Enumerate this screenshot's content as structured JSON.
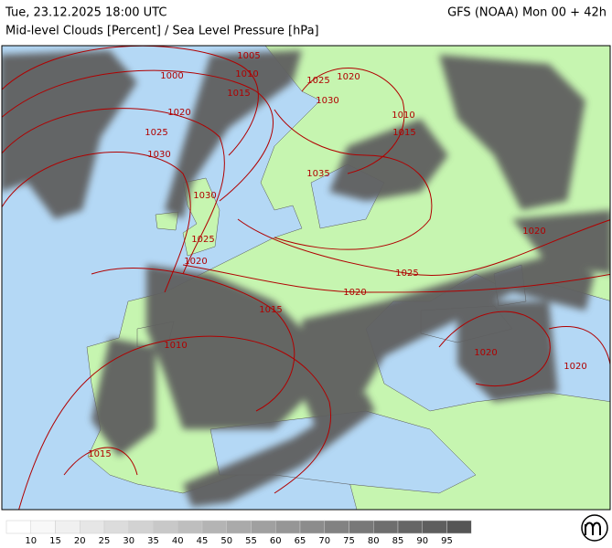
{
  "header": {
    "datetime": "Tue, 23.12.2025 18:00 UTC",
    "model": "GFS (NOAA) Mon 00 + 42h",
    "title": "Mid-level Clouds [Percent] / Sea Level Pressure [hPa]"
  },
  "isobar_labels": [
    "1005",
    "1000",
    "1010",
    "1015",
    "1025",
    "1020",
    "1030",
    "1020",
    "1010",
    "1025",
    "1015",
    "1030",
    "1035",
    "1030",
    "1020",
    "1025",
    "1020",
    "1025",
    "1020",
    "1015",
    "1010",
    "1020",
    "1020",
    "1015"
  ],
  "legend": {
    "ticks": [
      10,
      15,
      20,
      25,
      30,
      35,
      40,
      45,
      50,
      55,
      60,
      65,
      70,
      75,
      80,
      85,
      90,
      95
    ],
    "colors": [
      "#ffffff",
      "#f8f8f8",
      "#f0f0f0",
      "#e6e6e6",
      "#dcdcdc",
      "#d2d2d2",
      "#c8c8c8",
      "#bebebe",
      "#b4b4b4",
      "#aaaaaa",
      "#a0a0a0",
      "#969696",
      "#8c8c8c",
      "#828282",
      "#787878",
      "#6e6e6e",
      "#666666",
      "#5e5e5e",
      "#555555"
    ]
  }
}
